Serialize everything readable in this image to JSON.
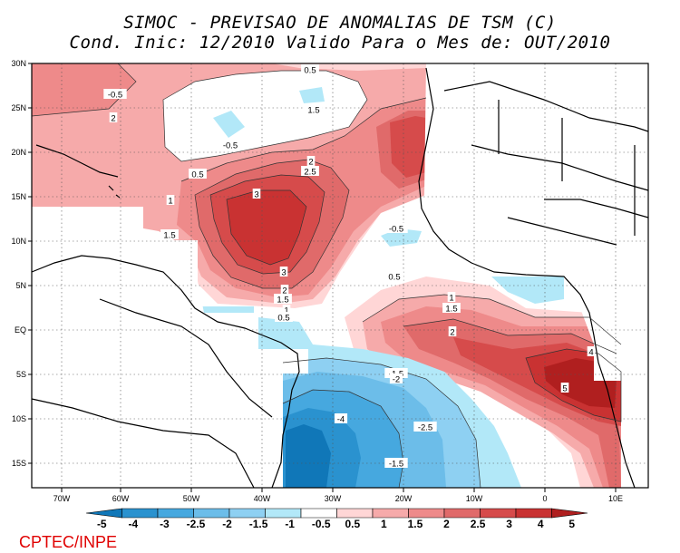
{
  "header": {
    "title_line1": "SIMOC - PREVISAO DE ANOMALIAS DE TSM (C)",
    "title_line2": "Cond. Inic: 12/2010   Valido Para o Mes de: OUT/2010"
  },
  "axes": {
    "lat_labels": [
      "30N",
      "25N",
      "20N",
      "15N",
      "10N",
      "5N",
      "EQ",
      "5S",
      "10S",
      "15S"
    ],
    "lon_labels": [
      "70W",
      "60W",
      "50W",
      "40W",
      "30W",
      "20W",
      "10W",
      "0",
      "10E"
    ]
  },
  "contour_labels": [
    "0.5",
    "-0.5",
    "2",
    "1.5",
    "-0.5",
    "0.5",
    "2",
    "2.5",
    "1",
    "3",
    "1.5",
    "3",
    "2",
    "1.5",
    "1",
    "0.5",
    "-0.5",
    "0.5",
    "1",
    "1.5",
    "2",
    "4",
    "5",
    "-1.5",
    "-2",
    "-4",
    "-2.5",
    "-1.5"
  ],
  "colorbar": {
    "labels": [
      "-5",
      "-4",
      "-3",
      "-2.5",
      "-2",
      "-1.5",
      "-1",
      "-0.5",
      "0.5",
      "1",
      "1.5",
      "2",
      "2.5",
      "3",
      "4",
      "5"
    ],
    "colors": [
      "#1077b8",
      "#2a92cf",
      "#46a8df",
      "#6cbde9",
      "#8ed0f2",
      "#b2e8f8",
      "#ffffff",
      "#ffd6d6",
      "#f6aaaa",
      "#ee8a8a",
      "#e06a6a",
      "#d64b4b",
      "#c93232",
      "#b01f1f"
    ]
  },
  "credit": "CPTEC/INPE"
}
